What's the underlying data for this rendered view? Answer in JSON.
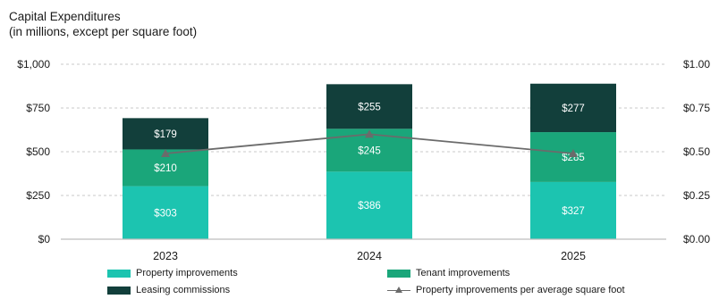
{
  "header": {
    "title": "Capital Expenditures",
    "subtitle": "(in millions, except per square foot)"
  },
  "colors": {
    "property": "#1cc4b0",
    "tenant": "#1aa67a",
    "leasing": "#123f3b",
    "line": "#6b6b6b",
    "grid": "#c8c8c8"
  },
  "chart_data": {
    "type": "bar",
    "stacked": true,
    "categories": [
      "2023",
      "2024",
      "2025"
    ],
    "series": [
      {
        "name": "Property improvements",
        "key": "property",
        "values": [
          303,
          386,
          327
        ],
        "labels": [
          "$303",
          "$386",
          "$327"
        ]
      },
      {
        "name": "Tenant improvements",
        "key": "tenant",
        "values": [
          210,
          245,
          285
        ],
        "labels": [
          "$210",
          "$245",
          "$285"
        ]
      },
      {
        "name": "Leasing commissions",
        "key": "leasing",
        "values": [
          179,
          255,
          277
        ],
        "labels": [
          "$179",
          "$255",
          "$277"
        ]
      }
    ],
    "line_series": {
      "name": "Property improvements per average square foot",
      "axis": "right",
      "values": [
        0.49,
        0.6,
        0.49
      ]
    },
    "ylim": [
      0,
      1000
    ],
    "y_ticks": [
      0,
      250,
      500,
      750,
      1000
    ],
    "y_tick_labels": [
      "$0",
      "$250",
      "$500",
      "$750",
      "$1,000"
    ],
    "y2lim": [
      0,
      1.0
    ],
    "y2_tick_labels": [
      "$0.00",
      "$0.25",
      "$0.50",
      "$0.75",
      "$1.00"
    ],
    "grid": true,
    "legend_position": "bottom"
  }
}
